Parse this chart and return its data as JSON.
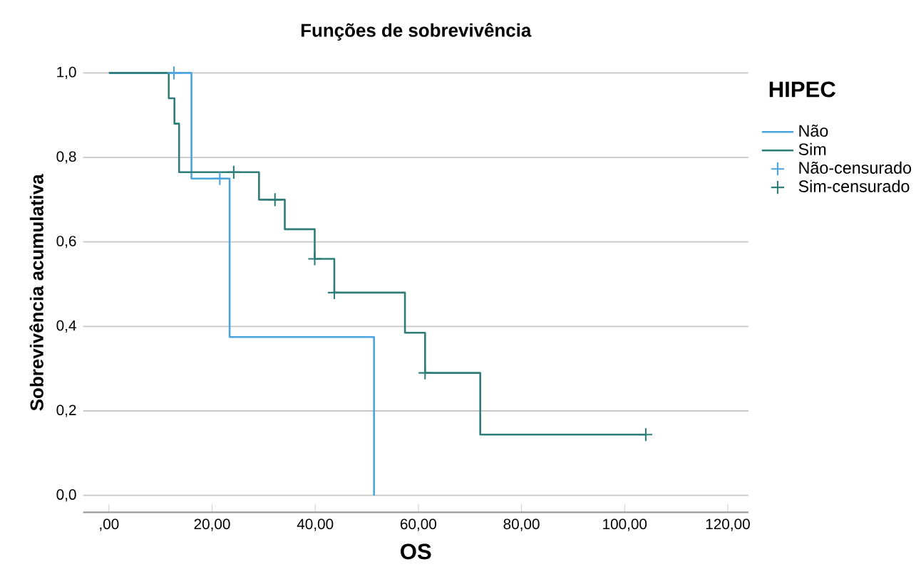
{
  "chart_data": {
    "type": "step",
    "title": "Funções de sobrevivência",
    "xlabel": "OS",
    "ylabel": "Sobrevivência acumulativa",
    "legend_title": "HIPEC",
    "legend": "top right",
    "grid": "y",
    "xlim": [
      -5,
      124
    ],
    "ylim": [
      -0.04,
      1
    ],
    "xticks": [
      {
        "value": 0,
        "label": ",00"
      },
      {
        "value": 20,
        "label": "20,00"
      },
      {
        "value": 40,
        "label": "40,00"
      },
      {
        "value": 60,
        "label": "60,00"
      },
      {
        "value": 80,
        "label": "80,00"
      },
      {
        "value": 100,
        "label": "100,00"
      },
      {
        "value": 120,
        "label": "120,00"
      }
    ],
    "yticks": [
      {
        "value": 0,
        "label": "0,0"
      },
      {
        "value": 0.2,
        "label": "0,2"
      },
      {
        "value": 0.4,
        "label": "0,4"
      },
      {
        "value": 0.6,
        "label": "0,6"
      },
      {
        "value": 0.8,
        "label": "0,8"
      },
      {
        "value": 1,
        "label": "1,0"
      }
    ],
    "series": [
      {
        "name": "Não",
        "color": "#4aa3df",
        "x": [
          0,
          16,
          23.4,
          51.4
        ],
        "values": [
          1,
          0.75,
          0.375,
          0
        ]
      },
      {
        "name": "Sim",
        "color": "#2e7d78",
        "x": [
          0,
          11.6,
          12.7,
          13.6,
          29.1,
          34.1,
          39.9,
          43.7,
          57.4,
          61.3,
          72,
          104.1
        ],
        "values": [
          1,
          0.94,
          0.88,
          0.765,
          0.7,
          0.63,
          0.56,
          0.48,
          0.385,
          0.29,
          0.144,
          0.144
        ]
      },
      {
        "name": "Não-censurado",
        "type": "scatter",
        "marker": "cross",
        "color": "#4aa3df",
        "x": [
          12.6,
          21.5
        ],
        "values": [
          1,
          0.75
        ]
      },
      {
        "name": "Sim-censurado",
        "type": "scatter",
        "marker": "cross",
        "color": "#2e7d78",
        "x": [
          24.2,
          32.2,
          39.9,
          43.7,
          61.3,
          104.1
        ],
        "values": [
          0.765,
          0.7,
          0.56,
          0.48,
          0.29,
          0.144
        ]
      }
    ]
  }
}
